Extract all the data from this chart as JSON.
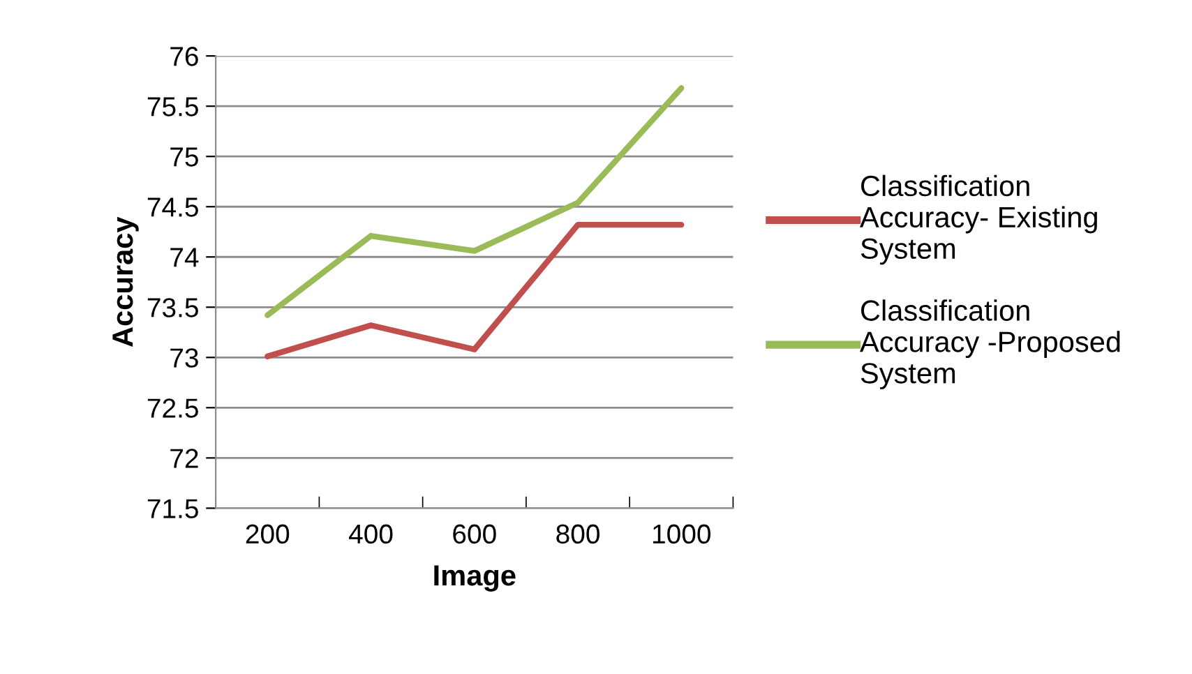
{
  "chart_data": {
    "type": "line",
    "xlabel": "Image",
    "ylabel": "Accuracy",
    "categories": [
      "200",
      "400",
      "600",
      "800",
      "1000"
    ],
    "series": [
      {
        "name": "Classification Accuracy- Existing System",
        "color": "#c0504d",
        "values": [
          73.01,
          73.32,
          73.08,
          74.32,
          74.32
        ]
      },
      {
        "name": "Classification Accuracy -Proposed System",
        "color": "#9bbb59",
        "values": [
          73.42,
          74.21,
          74.06,
          74.54,
          75.68
        ]
      }
    ],
    "ylim": [
      71.5,
      76
    ],
    "yticks": [
      71.5,
      72,
      72.5,
      73,
      73.5,
      74,
      74.5,
      75,
      75.5,
      76
    ],
    "grid": "y",
    "legend": "right",
    "marker": "none",
    "line_style": "solid"
  }
}
